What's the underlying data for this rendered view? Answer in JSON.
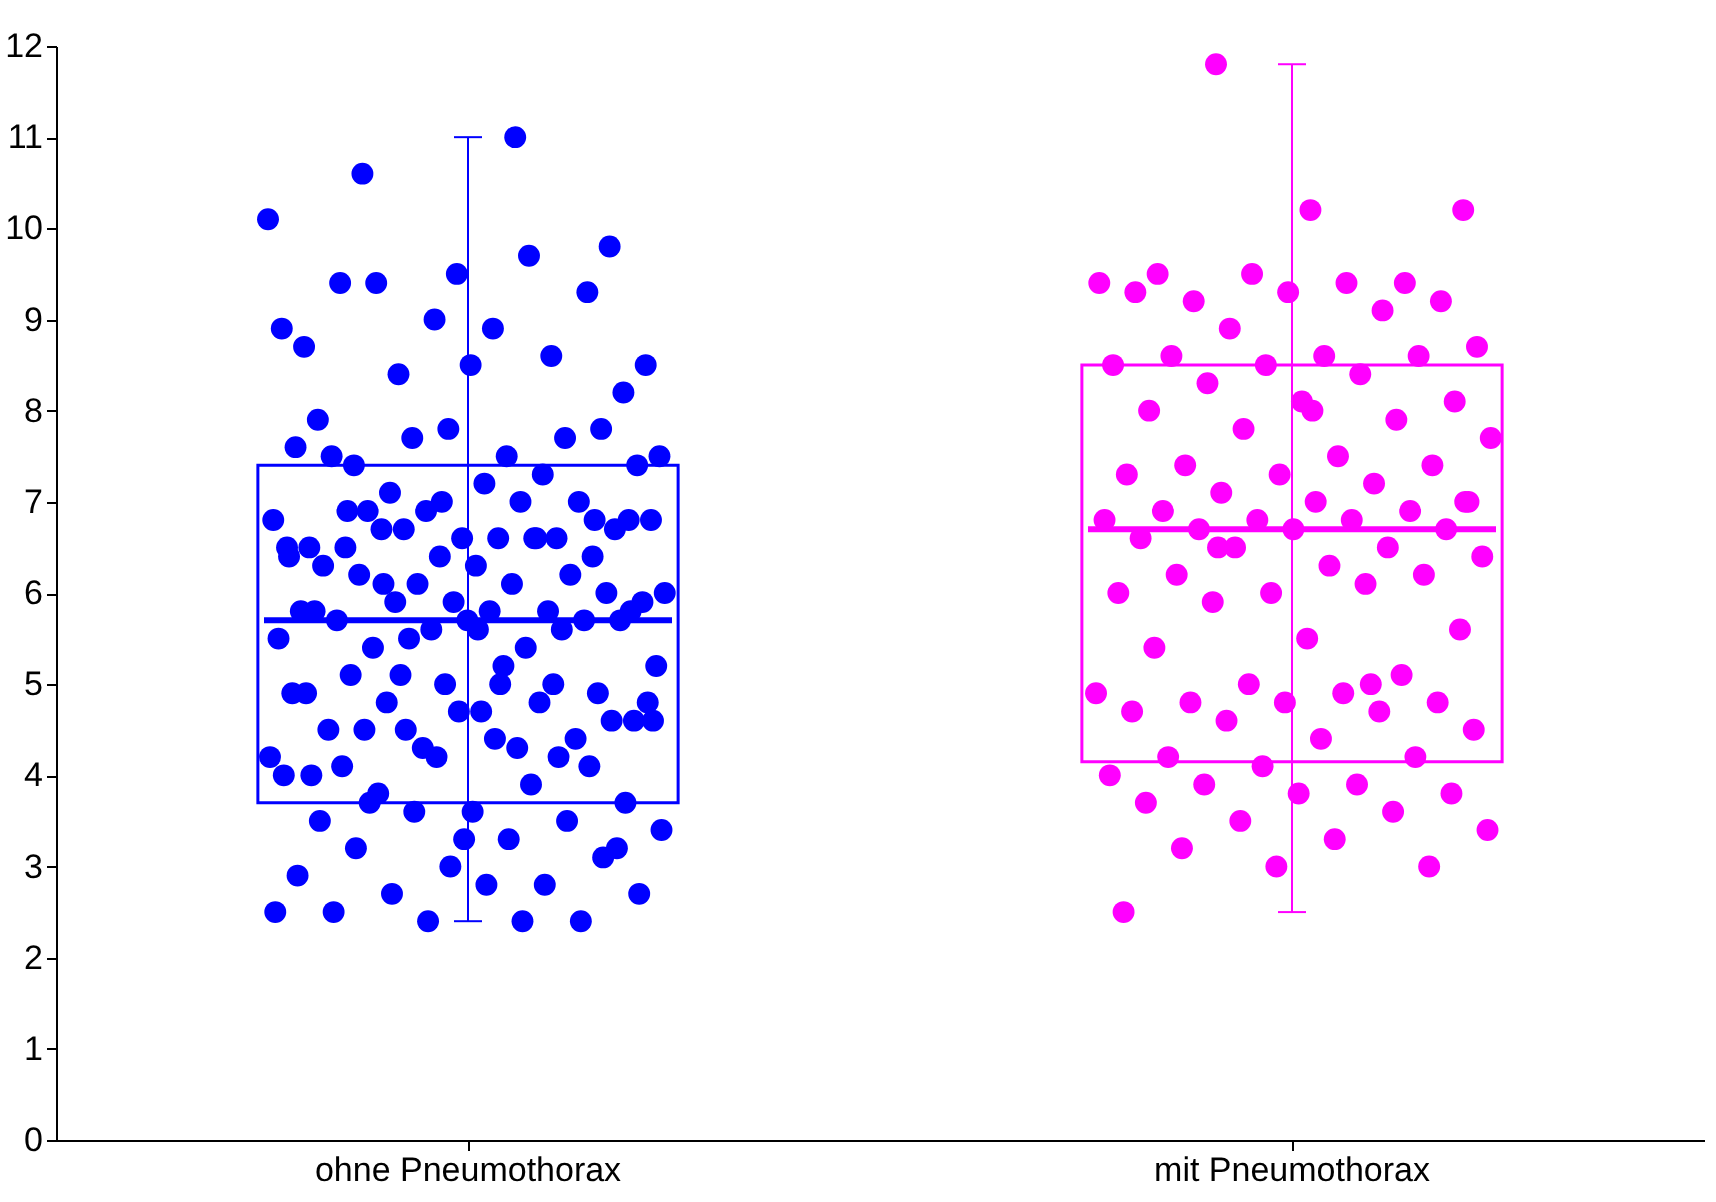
{
  "chart_data": {
    "type": "box",
    "categories": [
      "ohne Pneumothorax",
      "mit Pneumothorax"
    ],
    "colors": [
      "#0000ff",
      "#ff00ff"
    ],
    "boxes": [
      {
        "low": 2.4,
        "q1": 3.7,
        "median": 5.7,
        "q3": 7.4,
        "high": 11.0
      },
      {
        "low": 2.5,
        "q1": 4.15,
        "median": 6.7,
        "q3": 8.5,
        "high": 11.8
      }
    ],
    "ylim": [
      0,
      12
    ],
    "yticks": [
      0,
      1,
      2,
      3,
      4,
      5,
      6,
      7,
      8,
      9,
      10,
      11,
      12
    ],
    "grid": false,
    "marker": "circle",
    "series": [
      {
        "type": "scatter",
        "color": "#0000ff",
        "x": [
          "ohne Pneumothorax",
          "ohne Pneumothorax",
          "ohne Pneumothorax",
          "ohne Pneumothorax",
          "ohne Pneumothorax",
          "ohne Pneumothorax",
          "ohne Pneumothorax",
          "ohne Pneumothorax",
          "ohne Pneumothorax",
          "ohne Pneumothorax",
          "ohne Pneumothorax",
          "ohne Pneumothorax",
          "ohne Pneumothorax",
          "ohne Pneumothorax",
          "ohne Pneumothorax",
          "ohne Pneumothorax",
          "ohne Pneumothorax",
          "ohne Pneumothorax",
          "ohne Pneumothorax",
          "ohne Pneumothorax",
          "ohne Pneumothorax",
          "ohne Pneumothorax",
          "ohne Pneumothorax",
          "ohne Pneumothorax",
          "ohne Pneumothorax",
          "ohne Pneumothorax",
          "ohne Pneumothorax",
          "ohne Pneumothorax",
          "ohne Pneumothorax",
          "ohne Pneumothorax",
          "ohne Pneumothorax",
          "ohne Pneumothorax",
          "ohne Pneumothorax",
          "ohne Pneumothorax",
          "ohne Pneumothorax",
          "ohne Pneumothorax",
          "ohne Pneumothorax",
          "ohne Pneumothorax",
          "ohne Pneumothorax",
          "ohne Pneumothorax",
          "ohne Pneumothorax",
          "ohne Pneumothorax",
          "ohne Pneumothorax",
          "ohne Pneumothorax",
          "ohne Pneumothorax",
          "ohne Pneumothorax",
          "ohne Pneumothorax",
          "ohne Pneumothorax",
          "ohne Pneumothorax",
          "ohne Pneumothorax",
          "ohne Pneumothorax",
          "ohne Pneumothorax",
          "ohne Pneumothorax",
          "ohne Pneumothorax",
          "ohne Pneumothorax",
          "ohne Pneumothorax",
          "ohne Pneumothorax",
          "ohne Pneumothorax",
          "ohne Pneumothorax",
          "ohne Pneumothorax",
          "ohne Pneumothorax",
          "ohne Pneumothorax",
          "ohne Pneumothorax",
          "ohne Pneumothorax",
          "ohne Pneumothorax",
          "ohne Pneumothorax",
          "ohne Pneumothorax",
          "ohne Pneumothorax",
          "ohne Pneumothorax",
          "ohne Pneumothorax",
          "ohne Pneumothorax",
          "ohne Pneumothorax",
          "ohne Pneumothorax",
          "ohne Pneumothorax",
          "ohne Pneumothorax",
          "ohne Pneumothorax",
          "ohne Pneumothorax",
          "ohne Pneumothorax",
          "ohne Pneumothorax",
          "ohne Pneumothorax",
          "ohne Pneumothorax",
          "ohne Pneumothorax",
          "ohne Pneumothorax",
          "ohne Pneumothorax",
          "ohne Pneumothorax",
          "ohne Pneumothorax",
          "ohne Pneumothorax",
          "ohne Pneumothorax",
          "ohne Pneumothorax",
          "ohne Pneumothorax",
          "ohne Pneumothorax",
          "ohne Pneumothorax",
          "ohne Pneumothorax",
          "ohne Pneumothorax",
          "ohne Pneumothorax",
          "ohne Pneumothorax",
          "ohne Pneumothorax",
          "ohne Pneumothorax",
          "ohne Pneumothorax",
          "ohne Pneumothorax",
          "ohne Pneumothorax",
          "ohne Pneumothorax",
          "ohne Pneumothorax",
          "ohne Pneumothorax",
          "ohne Pneumothorax",
          "ohne Pneumothorax",
          "ohne Pneumothorax",
          "ohne Pneumothorax",
          "ohne Pneumothorax",
          "ohne Pneumothorax",
          "ohne Pneumothorax",
          "ohne Pneumothorax",
          "ohne Pneumothorax",
          "ohne Pneumothorax",
          "ohne Pneumothorax",
          "ohne Pneumothorax",
          "ohne Pneumothorax",
          "ohne Pneumothorax",
          "ohne Pneumothorax",
          "ohne Pneumothorax",
          "ohne Pneumothorax",
          "ohne Pneumothorax",
          "ohne Pneumothorax",
          "ohne Pneumothorax",
          "ohne Pneumothorax",
          "ohne Pneumothorax",
          "ohne Pneumothorax",
          "ohne Pneumothorax",
          "ohne Pneumothorax",
          "ohne Pneumothorax",
          "ohne Pneumothorax",
          "ohne Pneumothorax",
          "ohne Pneumothorax",
          "ohne Pneumothorax",
          "ohne Pneumothorax",
          "ohne Pneumothorax",
          "ohne Pneumothorax",
          "ohne Pneumothorax",
          "ohne Pneumothorax",
          "ohne Pneumothorax",
          "ohne Pneumothorax"
        ],
        "values": [
          10.1,
          11.0,
          10.6,
          9.8,
          9.5,
          8.7,
          8.6,
          8.4,
          8.5,
          8.9,
          9.4,
          9.3,
          9.0,
          8.9,
          9.7,
          9.4,
          8.2,
          8.5,
          7.9,
          7.7,
          7.7,
          7.5,
          7.5,
          7.4,
          7.8,
          7.8,
          7.6,
          7.3,
          7.1,
          7.4,
          7.2,
          7.5,
          7.0,
          6.9,
          6.8,
          7.0,
          6.9,
          6.7,
          6.6,
          6.5,
          6.6,
          6.7,
          6.8,
          6.6,
          6.5,
          6.4,
          6.4,
          6.5,
          6.6,
          6.7,
          6.8,
          6.3,
          6.3,
          6.2,
          6.1,
          6.0,
          6.1,
          6.2,
          6.0,
          5.9,
          5.8,
          5.8,
          5.9,
          5.9,
          5.8,
          5.7,
          5.7,
          5.6,
          5.5,
          5.4,
          5.4,
          5.7,
          5.7,
          5.8,
          5.6,
          5.5,
          5.2,
          5.2,
          5.1,
          4.9,
          5.0,
          4.9,
          4.8,
          4.8,
          4.6,
          4.7,
          4.5,
          4.4,
          4.3,
          4.2,
          4.3,
          4.5,
          4.6,
          4.7,
          4.9,
          5.0,
          5.1,
          4.8,
          4.4,
          4.1,
          4.1,
          4.2,
          4.0,
          3.9,
          3.8,
          3.7,
          3.6,
          3.5,
          3.5,
          3.6,
          3.4,
          3.3,
          3.2,
          3.1,
          3.0,
          2.9,
          2.8,
          2.7,
          2.7,
          2.8,
          2.5,
          2.4,
          2.4,
          2.5,
          2.4,
          3.7,
          3.2,
          3.3,
          4.0,
          4.2,
          4.5,
          4.6,
          5.0,
          6.9,
          6.8,
          7.0,
          6.4,
          6.6,
          6.1,
          5.8,
          5.6
        ]
      },
      {
        "type": "scatter",
        "color": "#ff00ff",
        "x": [
          "mit Pneumothorax",
          "mit Pneumothorax",
          "mit Pneumothorax",
          "mit Pneumothorax",
          "mit Pneumothorax",
          "mit Pneumothorax",
          "mit Pneumothorax",
          "mit Pneumothorax",
          "mit Pneumothorax",
          "mit Pneumothorax",
          "mit Pneumothorax",
          "mit Pneumothorax",
          "mit Pneumothorax",
          "mit Pneumothorax",
          "mit Pneumothorax",
          "mit Pneumothorax",
          "mit Pneumothorax",
          "mit Pneumothorax",
          "mit Pneumothorax",
          "mit Pneumothorax",
          "mit Pneumothorax",
          "mit Pneumothorax",
          "mit Pneumothorax",
          "mit Pneumothorax",
          "mit Pneumothorax",
          "mit Pneumothorax",
          "mit Pneumothorax",
          "mit Pneumothorax",
          "mit Pneumothorax",
          "mit Pneumothorax",
          "mit Pneumothorax",
          "mit Pneumothorax",
          "mit Pneumothorax",
          "mit Pneumothorax",
          "mit Pneumothorax",
          "mit Pneumothorax",
          "mit Pneumothorax",
          "mit Pneumothorax",
          "mit Pneumothorax",
          "mit Pneumothorax",
          "mit Pneumothorax",
          "mit Pneumothorax",
          "mit Pneumothorax",
          "mit Pneumothorax",
          "mit Pneumothorax",
          "mit Pneumothorax",
          "mit Pneumothorax",
          "mit Pneumothorax",
          "mit Pneumothorax",
          "mit Pneumothorax",
          "mit Pneumothorax",
          "mit Pneumothorax",
          "mit Pneumothorax",
          "mit Pneumothorax",
          "mit Pneumothorax",
          "mit Pneumothorax",
          "mit Pneumothorax",
          "mit Pneumothorax",
          "mit Pneumothorax",
          "mit Pneumothorax",
          "mit Pneumothorax",
          "mit Pneumothorax",
          "mit Pneumothorax",
          "mit Pneumothorax",
          "mit Pneumothorax",
          "mit Pneumothorax",
          "mit Pneumothorax",
          "mit Pneumothorax",
          "mit Pneumothorax",
          "mit Pneumothorax",
          "mit Pneumothorax",
          "mit Pneumothorax",
          "mit Pneumothorax",
          "mit Pneumothorax",
          "mit Pneumothorax",
          "mit Pneumothorax",
          "mit Pneumothorax",
          "mit Pneumothorax",
          "mit Pneumothorax",
          "mit Pneumothorax",
          "mit Pneumothorax",
          "mit Pneumothorax",
          "mit Pneumothorax",
          "mit Pneumothorax",
          "mit Pneumothorax",
          "mit Pneumothorax",
          "mit Pneumothorax",
          "mit Pneumothorax",
          "mit Pneumothorax",
          "mit Pneumothorax",
          "mit Pneumothorax",
          "mit Pneumothorax"
        ],
        "values": [
          11.8,
          10.2,
          10.2,
          9.5,
          9.4,
          9.5,
          9.4,
          9.4,
          9.2,
          9.2,
          9.3,
          9.3,
          9.1,
          8.9,
          8.7,
          8.6,
          8.6,
          8.6,
          8.5,
          8.5,
          8.4,
          8.3,
          8.1,
          8.1,
          8.0,
          7.9,
          7.8,
          7.7,
          7.5,
          7.4,
          7.4,
          7.3,
          7.3,
          7.2,
          7.1,
          7.0,
          7.0,
          6.9,
          6.9,
          6.8,
          6.8,
          6.8,
          6.7,
          6.7,
          6.7,
          6.6,
          6.5,
          6.5,
          6.4,
          6.3,
          6.2,
          6.2,
          6.0,
          6.0,
          6.1,
          5.9,
          5.6,
          5.5,
          5.4,
          5.1,
          5.0,
          4.9,
          4.9,
          4.8,
          4.8,
          4.8,
          4.7,
          4.7,
          4.6,
          4.5,
          4.4,
          4.2,
          4.2,
          4.1,
          4.0,
          3.9,
          3.9,
          3.8,
          3.8,
          3.7,
          3.6,
          3.5,
          3.4,
          3.3,
          3.2,
          3.0,
          3.0,
          2.5,
          5.0,
          6.5,
          7.0,
          8.0
        ]
      }
    ]
  }
}
